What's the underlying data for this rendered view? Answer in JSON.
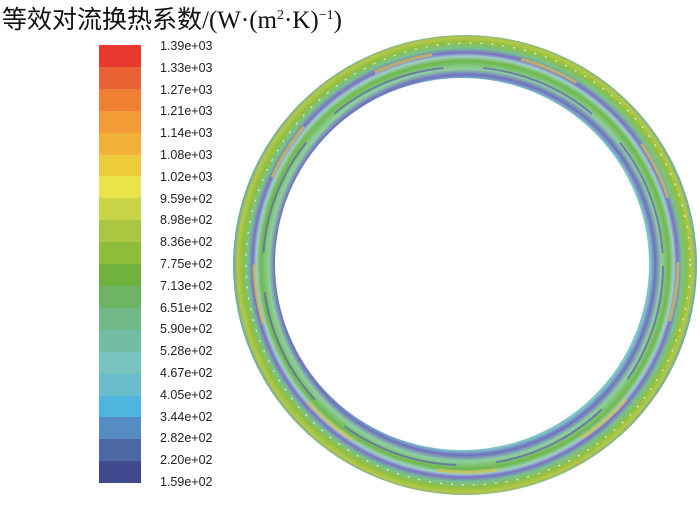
{
  "chart_data": {
    "type": "heatmap",
    "title": "等效对流换热系数/(W·(m²·K)⁻¹)",
    "title_parts": {
      "main": "等效对流换热系数/(W·(m",
      "sup1": "2",
      "mid": "·K)",
      "sup2": "−1",
      "end": ")"
    },
    "colorbar": {
      "orientation": "vertical",
      "placement": "left",
      "range": [
        159,
        1390
      ],
      "tick_labels": [
        "1.39e+03",
        "1.33e+03",
        "1.27e+03",
        "1.21e+03",
        "1.14e+03",
        "1.08e+03",
        "1.02e+03",
        "9.59e+02",
        "8.98e+02",
        "8.36e+02",
        "7.75e+02",
        "7.13e+02",
        "6.51e+02",
        "5.90e+02",
        "5.28e+02",
        "4.67e+02",
        "4.05e+02",
        "3.44e+02",
        "2.82e+02",
        "2.20e+02",
        "1.59e+02"
      ],
      "colors": [
        "#e8392f",
        "#ea6233",
        "#ee7f33",
        "#f29b37",
        "#f0b23a",
        "#edcc3b",
        "#e8e44a",
        "#cad447",
        "#abc640",
        "#8dbd3b",
        "#70b33c",
        "#6db565",
        "#72b98a",
        "#74bca4",
        "#78c2bf",
        "#68bccb",
        "#4fb5df",
        "#558cc4",
        "#4d68a5",
        "#404a8f"
      ]
    },
    "field": "annular ring contour, predominantly green (~6.5e+02–8.4e+02) with cyan and blue-violet streaks (~1.6e+02–4.7e+02) along inner and mid radius, sparse yellow-orange patches on outer edge"
  }
}
